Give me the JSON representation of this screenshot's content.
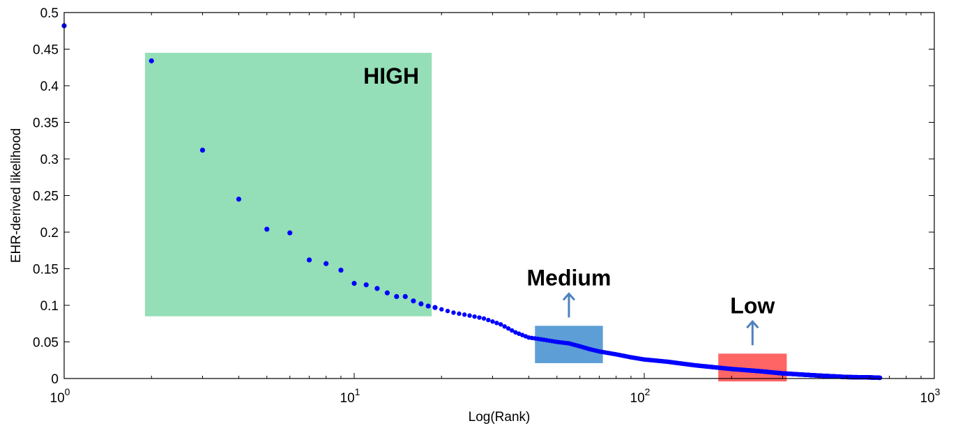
{
  "chart_data": {
    "type": "scatter",
    "title": "",
    "xlabel": "Log(Rank)",
    "ylabel": "EHR-derived likelihood",
    "xscale": "log",
    "xlim": [
      1,
      1000
    ],
    "ylim": [
      0,
      0.5
    ],
    "x_ticks": [
      {
        "value": 1,
        "base": "10",
        "exp": "0"
      },
      {
        "value": 10,
        "base": "10",
        "exp": "1"
      },
      {
        "value": 100,
        "base": "10",
        "exp": "2"
      },
      {
        "value": 1000,
        "base": "10",
        "exp": "3"
      }
    ],
    "y_ticks": [
      {
        "value": 0,
        "label": "0"
      },
      {
        "value": 0.05,
        "label": "0.05"
      },
      {
        "value": 0.1,
        "label": "0.1"
      },
      {
        "value": 0.15,
        "label": "0.15"
      },
      {
        "value": 0.2,
        "label": "0.2"
      },
      {
        "value": 0.25,
        "label": "0.25"
      },
      {
        "value": 0.3,
        "label": "0.3"
      },
      {
        "value": 0.35,
        "label": "0.35"
      },
      {
        "value": 0.4,
        "label": "0.4"
      },
      {
        "value": 0.45,
        "label": "0.45"
      },
      {
        "value": 0.5,
        "label": "0.5"
      }
    ],
    "grid": false,
    "point_color": "#0000ff",
    "ranked_points": [
      [
        1,
        0.482
      ],
      [
        2,
        0.434
      ],
      [
        3,
        0.312
      ],
      [
        4,
        0.245
      ],
      [
        5,
        0.204
      ],
      [
        6,
        0.199
      ],
      [
        7,
        0.162
      ],
      [
        8,
        0.157
      ],
      [
        9,
        0.148
      ],
      [
        10,
        0.13
      ],
      [
        11,
        0.128
      ],
      [
        12,
        0.123
      ],
      [
        13,
        0.117
      ],
      [
        14,
        0.112
      ],
      [
        15,
        0.112
      ],
      [
        16,
        0.106
      ],
      [
        17,
        0.102
      ],
      [
        18,
        0.099
      ],
      [
        19,
        0.097
      ]
    ],
    "curve_knots": [
      [
        19,
        0.097
      ],
      [
        22,
        0.09
      ],
      [
        25,
        0.086
      ],
      [
        28,
        0.082
      ],
      [
        32,
        0.074
      ],
      [
        36,
        0.063
      ],
      [
        40,
        0.056
      ],
      [
        45,
        0.053
      ],
      [
        50,
        0.05
      ],
      [
        55,
        0.048
      ],
      [
        60,
        0.044
      ],
      [
        65,
        0.04
      ],
      [
        70,
        0.037
      ],
      [
        80,
        0.033
      ],
      [
        90,
        0.029
      ],
      [
        100,
        0.026
      ],
      [
        120,
        0.023
      ],
      [
        150,
        0.018
      ],
      [
        200,
        0.013
      ],
      [
        250,
        0.01
      ],
      [
        300,
        0.007
      ],
      [
        400,
        0.004
      ],
      [
        500,
        0.002
      ],
      [
        600,
        0.0015
      ],
      [
        650,
        0.001
      ]
    ],
    "regions": [
      {
        "name": "HIGH",
        "color": "#3cc47c",
        "opacity": 0.55,
        "x": [
          1.9,
          18.5
        ],
        "y": [
          0.085,
          0.445
        ],
        "arrow": false
      },
      {
        "name": "Medium",
        "color": "#1f78c8",
        "opacity": 0.72,
        "x": [
          42,
          72
        ],
        "y": [
          0.021,
          0.072
        ],
        "arrow": true
      },
      {
        "name": "Low",
        "color": "#ff2a2a",
        "opacity": 0.72,
        "x": [
          180,
          310
        ],
        "y": [
          -0.004,
          0.034
        ],
        "arrow": true
      }
    ],
    "arrow_color": "#4f81bd"
  }
}
